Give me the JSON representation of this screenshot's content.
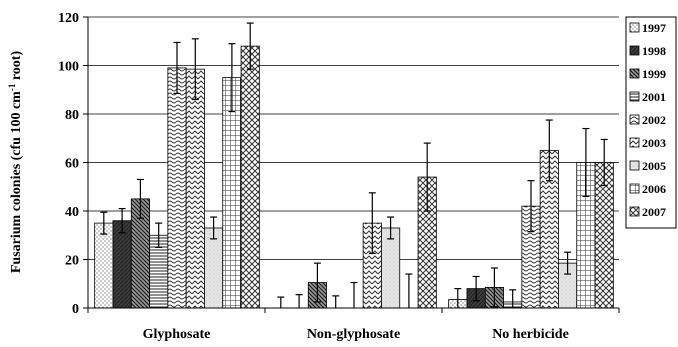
{
  "chart_data": {
    "type": "bar",
    "title": "",
    "xlabel": "",
    "ylabel": "Fusarium colonies (cfu 100 cm",
    "ylabel_sup": "-1",
    "ylabel_end": " root)",
    "ylim": [
      0,
      120
    ],
    "yticks": [
      0,
      20,
      40,
      60,
      80,
      100,
      120
    ],
    "grid": true,
    "legend_position": "right",
    "categories": [
      "Glyphosate",
      "Non-glyphosate",
      "No herbicide"
    ],
    "series": [
      {
        "name": "1997",
        "values": [
          35,
          0,
          3.5
        ],
        "errors": [
          4.5,
          4.5,
          4.5
        ],
        "pattern": "dots"
      },
      {
        "name": "1998",
        "values": [
          36,
          0,
          8
        ],
        "errors": [
          5,
          5.5,
          5
        ],
        "pattern": "dark"
      },
      {
        "name": "1999",
        "values": [
          45,
          10.5,
          8.5
        ],
        "errors": [
          8,
          8,
          8
        ],
        "pattern": "diag"
      },
      {
        "name": "2001",
        "values": [
          30,
          0,
          2.5
        ],
        "errors": [
          5,
          5,
          5
        ],
        "pattern": "hlines"
      },
      {
        "name": "2002",
        "values": [
          99,
          0,
          42
        ],
        "errors": [
          10.5,
          10.5,
          10.5
        ],
        "pattern": "waves"
      },
      {
        "name": "2003",
        "values": [
          98.5,
          35,
          65
        ],
        "errors": [
          12.5,
          12.5,
          12.5
        ],
        "pattern": "zigzag"
      },
      {
        "name": "2005",
        "values": [
          33,
          33,
          18.5
        ],
        "errors": [
          4.5,
          4.5,
          4.5
        ],
        "pattern": "light"
      },
      {
        "name": "2006",
        "values": [
          95,
          0,
          60
        ],
        "errors": [
          14,
          14,
          14
        ],
        "pattern": "grid"
      },
      {
        "name": "2007",
        "values": [
          108,
          54,
          60
        ],
        "errors": [
          9.5,
          14,
          9.5
        ],
        "pattern": "cross"
      }
    ]
  }
}
